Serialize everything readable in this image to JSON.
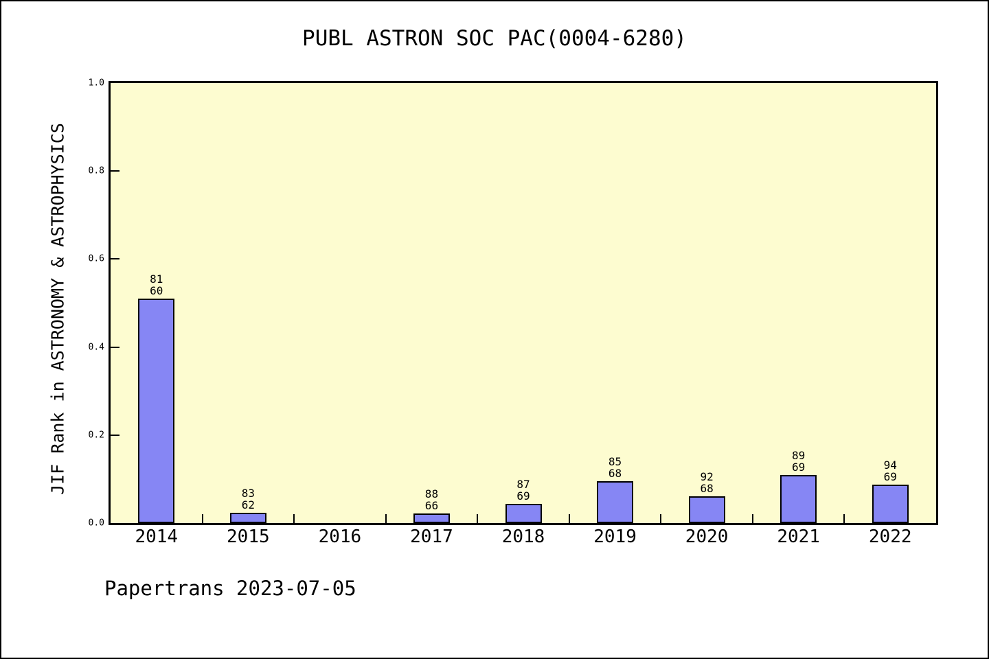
{
  "footer": {
    "text": "Papertrans 2023-07-05"
  },
  "chart_data": {
    "type": "bar",
    "title": "PUBL ASTRON SOC PAC(0004-6280)",
    "xlabel": "",
    "ylabel": "JIF Rank in ASTRONOMY & ASTROPHYSICS",
    "categories": [
      "2014",
      "2015",
      "2016",
      "2017",
      "2018",
      "2019",
      "2020",
      "2021",
      "2022"
    ],
    "values": [
      0.51,
      0.023,
      0,
      0.022,
      0.044,
      0.095,
      0.061,
      0.109,
      0.087
    ],
    "bar_labels": [
      [
        "81",
        "60"
      ],
      [
        "83",
        "62"
      ],
      [],
      [
        "88",
        "66"
      ],
      [
        "87",
        "69"
      ],
      [
        "85",
        "68"
      ],
      [
        "92",
        "68"
      ],
      [
        "89",
        "69"
      ],
      [
        "94",
        "69"
      ]
    ],
    "ylim": [
      0,
      1
    ],
    "yticks": [
      "0.0",
      "0.2",
      "0.4",
      "0.6",
      "0.8",
      "1.0"
    ],
    "grid": false,
    "legend_position": "none",
    "colors": {
      "bar_fill": "#8686f4",
      "bar_border": "#000000",
      "plot_background": "#fdfcd0",
      "page_background": "#ffffff",
      "axis": "#000000",
      "text": "#000000"
    }
  }
}
